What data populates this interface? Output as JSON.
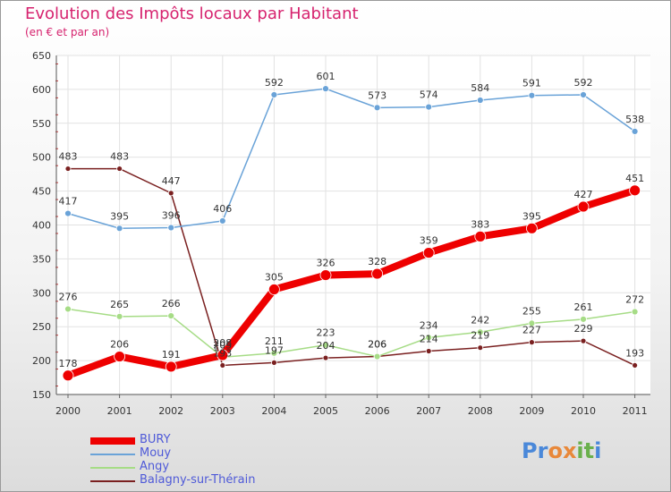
{
  "title": "Evolution des Impôts locaux par Habitant",
  "subtitle": "(en € et par an)",
  "logo": {
    "text": "Proxiti",
    "letters": [
      "P",
      "r",
      "o",
      "x",
      "i",
      "t",
      "i"
    ],
    "colors": [
      "#4a88d9",
      "#4a88d9",
      "#e8883a",
      "#e8883a",
      "#6ab04c",
      "#6ab04c",
      "#4a88d9"
    ]
  },
  "chart_data": {
    "type": "line",
    "title": "Evolution des Impôts locaux par Habitant",
    "subtitle": "(en € et par an)",
    "xlabel": "",
    "ylabel": "",
    "x": [
      "2000",
      "2001",
      "2002",
      "2003",
      "2004",
      "2005",
      "2006",
      "2007",
      "2008",
      "2009",
      "2010",
      "2011"
    ],
    "ylim": [
      150,
      650
    ],
    "yticks": [
      150,
      200,
      250,
      300,
      350,
      400,
      450,
      500,
      550,
      600,
      650
    ],
    "grid": true,
    "legend_position": "bottom-left",
    "series": [
      {
        "name": "BURY",
        "color": "#ee0000",
        "values": [
          178,
          206,
          191,
          208,
          305,
          326,
          328,
          359,
          383,
          395,
          427,
          451
        ]
      },
      {
        "name": "Mouy",
        "color": "#6aa3d8",
        "values": [
          417,
          395,
          396,
          406,
          592,
          601,
          573,
          574,
          584,
          591,
          592,
          538
        ]
      },
      {
        "name": "Angy",
        "color": "#a6dc86",
        "values": [
          276,
          265,
          266,
          205,
          211,
          223,
          206,
          234,
          242,
          255,
          261,
          272
        ]
      },
      {
        "name": "Balagny-sur-Thérain",
        "color": "#7a2020",
        "values": [
          483,
          483,
          447,
          193,
          197,
          204,
          206,
          214,
          219,
          227,
          229,
          193
        ]
      }
    ]
  }
}
